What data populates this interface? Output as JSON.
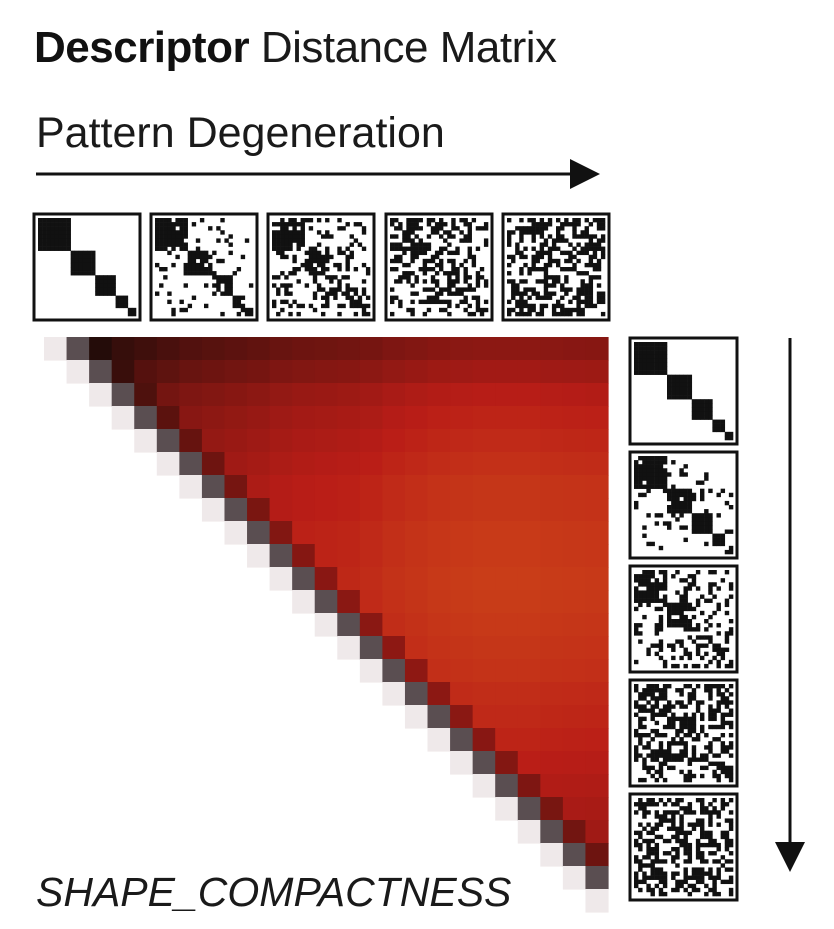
{
  "title_bold": "Descriptor",
  "title_rest": "Distance Matrix",
  "subtitle": "Pattern Degeneration",
  "footer": "SHAPE_COMPACTNESS",
  "colors": {
    "ink": "#111111",
    "low": "#140a08",
    "mid": "#b91d17",
    "high": "#f08b1c"
  },
  "chart_data": {
    "type": "heatmap",
    "title": "Descriptor Distance Matrix",
    "matrix_size": 25,
    "triangle": "upper",
    "pattern_levels": 5,
    "note_value_scale": "relative distance 0-1 (dark = low, orange = high)",
    "row_profile": [
      0.0,
      0.12,
      0.24,
      0.3,
      0.34,
      0.38,
      0.42,
      0.42,
      0.45,
      0.45,
      0.47,
      0.46,
      0.44,
      0.42,
      0.4,
      0.36,
      0.33,
      0.3,
      0.26,
      0.22,
      0.18,
      0.14,
      0.1,
      0.06,
      0.02
    ],
    "column_profile": [
      0.0,
      0.06,
      0.2,
      0.28,
      0.36,
      0.44,
      0.52,
      0.56,
      0.6,
      0.64,
      0.7,
      0.74,
      0.76,
      0.78,
      0.82,
      0.88,
      0.92,
      0.96,
      0.98,
      1.0,
      1.0,
      1.0,
      0.98,
      0.97,
      0.96
    ]
  }
}
